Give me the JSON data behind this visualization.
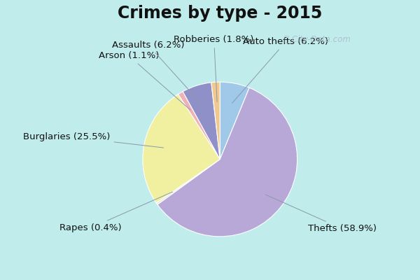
{
  "title": "Crimes by type - 2015",
  "title_fontsize": 17,
  "title_fontweight": "bold",
  "slices": [
    {
      "label": "Auto thefts (6.2%)",
      "value": 6.2,
      "color": "#a0c8e8"
    },
    {
      "label": "Thefts (58.9%)",
      "value": 58.9,
      "color": "#b8a8d8"
    },
    {
      "label": "Rapes (0.4%)",
      "value": 0.4,
      "color": "#e8e8d8"
    },
    {
      "label": "Burglaries (25.5%)",
      "value": 25.5,
      "color": "#f0f0a0"
    },
    {
      "label": "Arson (1.1%)",
      "value": 1.1,
      "color": "#f0b0b8"
    },
    {
      "label": "Assaults (6.2%)",
      "value": 6.2,
      "color": "#9090c8"
    },
    {
      "label": "Robberies (1.8%)",
      "value": 1.8,
      "color": "#f0c890"
    }
  ],
  "background_color": "#c0ecec",
  "chart_bg": "#d8f0e8",
  "watermark": " City-Data.com",
  "label_fontsize": 9.5,
  "startangle": 90
}
